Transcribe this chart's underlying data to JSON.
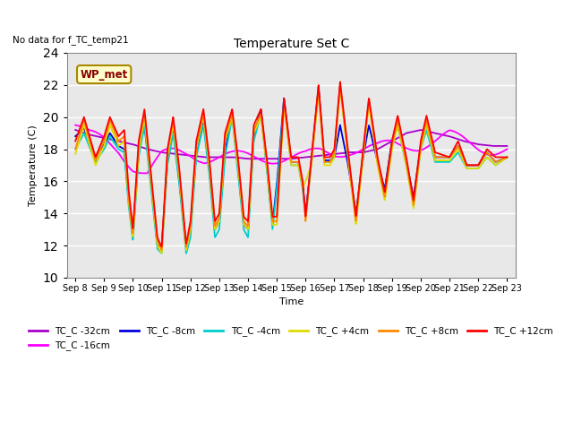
{
  "title": "Temperature Set C",
  "suptitle_left": "No data for f_TC_temp21",
  "xlabel": "Time",
  "ylabel": "Temperature (C)",
  "ylim": [
    10,
    24
  ],
  "xlim": [
    -0.3,
    15.3
  ],
  "background_color": "#e8e8e8",
  "grid_color": "#ffffff",
  "series_colors": {
    "TC_C -32cm": "#aa00cc",
    "TC_C -16cm": "#ff00ff",
    "TC_C -8cm": "#0000dd",
    "TC_C -4cm": "#00cccc",
    "TC_C +4cm": "#dddd00",
    "TC_C +8cm": "#ff8800",
    "TC_C +12cm": "#ff0000"
  },
  "xtick_labels": [
    "Sep 8",
    "Sep 9",
    "Sep 10",
    "Sep 11",
    "Sep 12",
    "Sep 13",
    "Sep 14",
    "Sep 15",
    "Sep 16",
    "Sep 17",
    "Sep 18",
    "Sep 19",
    "Sep 20",
    "Sep 21",
    "Sep 22",
    "Sep 23"
  ],
  "wp_met_box": {
    "text": "WP_met",
    "bg": "#ffffcc",
    "border": "#aa8800"
  },
  "figsize": [
    6.4,
    4.8
  ],
  "dpi": 100
}
